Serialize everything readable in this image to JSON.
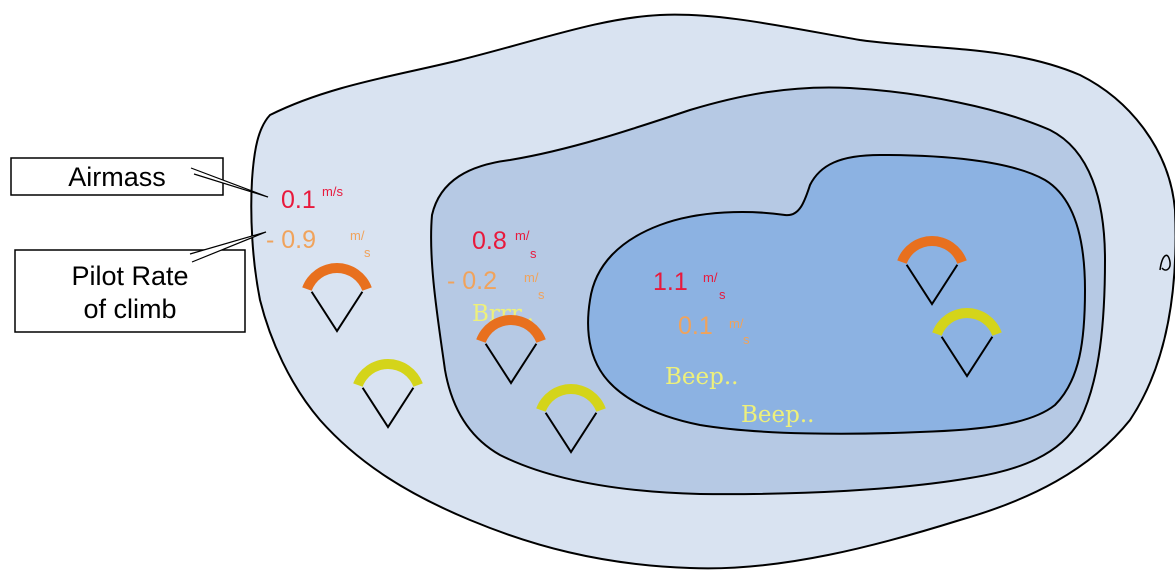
{
  "colors": {
    "outer_zone": "#d9e3f1",
    "middle_zone": "#b6c9e4",
    "inner_zone": "#8cb2e2",
    "airmass_value": "#e8193c",
    "pilot_value": "#f0a35c",
    "sound": "#eef07a",
    "glider_orange": "#e8701e",
    "glider_yellow": "#d4d41a"
  },
  "callouts": {
    "airmass": "Airmass",
    "pilot_line1": "Pilot Rate",
    "pilot_line2": "of climb"
  },
  "zones": {
    "outer": {
      "airmass_number": "0.1",
      "airmass_unit": "m/s",
      "pilot_number": "- 0.9",
      "pilot_unit_top": "m/",
      "pilot_unit_bottom": "s"
    },
    "middle": {
      "airmass_number": "0.8",
      "airmass_unit_top": "m/",
      "airmass_unit_bottom": "s",
      "pilot_number": "- 0.2",
      "pilot_unit_top": "m/",
      "pilot_unit_bottom": "s",
      "sound": "Brrr.."
    },
    "inner": {
      "airmass_number": "1.1",
      "airmass_unit_top": "m/",
      "airmass_unit_bottom": "s",
      "pilot_number": "0.1",
      "pilot_unit_top": "m/",
      "pilot_unit_bottom": "s",
      "sound1": "Beep..",
      "sound2": "Beep.."
    }
  },
  "gliders": [
    {
      "zone": "outer",
      "color": "orange"
    },
    {
      "zone": "outer",
      "color": "yellow"
    },
    {
      "zone": "middle",
      "color": "orange"
    },
    {
      "zone": "middle",
      "color": "yellow"
    },
    {
      "zone": "inner",
      "color": "orange"
    },
    {
      "zone": "inner",
      "color": "yellow"
    }
  ]
}
